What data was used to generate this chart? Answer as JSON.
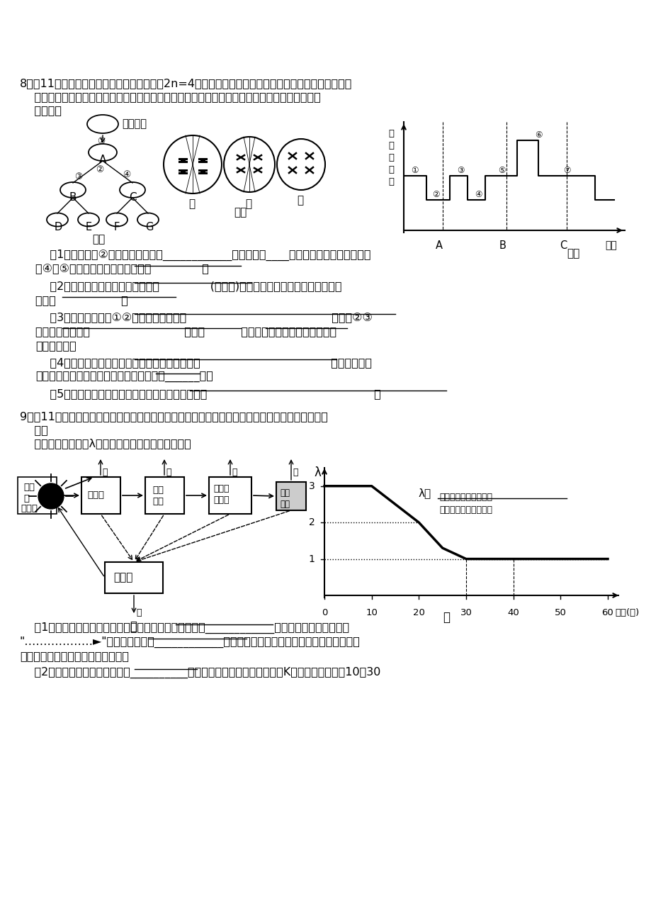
{
  "bg_color": "#ffffff",
  "figsize": [
    9.2,
    12.74
  ],
  "dpi": 100,
  "q8_line1": "8．（11分，每空１分）下面是某雄性动物（2n=4）在生殖和发育过程中的有关图示。图１是减数分裂",
  "q8_line2": "    过程简图，图２、图３是一同学画的不同时期细胞分裂图像和细胞染色体数目的变化曲线，请据",
  "q8_line3": "    图回答：",
  "fig1_label": "图１",
  "fig2_label": "图２",
  "fig3_label": "图３",
  "jingyuan": "精原细胞",
  "q8_q1": "    （1）图１中的②过程产生的细胞叫____________，图２中的____细胞处在该过程中。图３中",
  "q8_q1b": "从④到⑤的生理过程利用了细胞膜的              。",
  "q8_q2": "    （2）图２中乙细胞时期处于图３中              (填编号)阶段，其分裂产生的子细胞可能为",
  "q8_q2b": "图１中                  。",
  "q8_q3": "    （3）图３中，曲线①②阶段形成的原因是                                        ；曲线②③",
  "q8_q3b": "阶段形成的原因是                          ；曲线          阶段（填编号）的细胞内不存在",
  "q8_q3c": "同源染色体。",
  "q8_q4": "    （4）根据遗传学原理分析，生物个体发育过程是                                    的结果；在发",
  "q8_q4b": "育过程中，该动物细胞中染色体数最多时有______条。",
  "q8_q5": "    （5）有人发现图２甲图有错误。请指出错误之处是                                              。",
  "q9_line1": "9．（11分，每空１分）图甲表示某温带草原生态系统的能量流和部分物质流，图乙表示某种群迁入",
  "q9_line2": "    该生",
  "q9_line3": "    态系统一定时间内λ值和时间的关系。请据图回答：",
  "q9_q1": "    （1）从图甲分析，无机环境中的物质和能量主要是通过____________过程进入生物群落，图中",
  "q9_q1b": "\"………………►\"表示生态系统的____________；生态系统中能量是不能循环流动的，原因是",
  "q9_q1c": "不能被生物体固定用于合成有机物。",
  "q9_q2": "    （2）由图乙可知，该种群在第__________年时，达到种群的环境容纳量（K值）。当种群在第10～30"
}
